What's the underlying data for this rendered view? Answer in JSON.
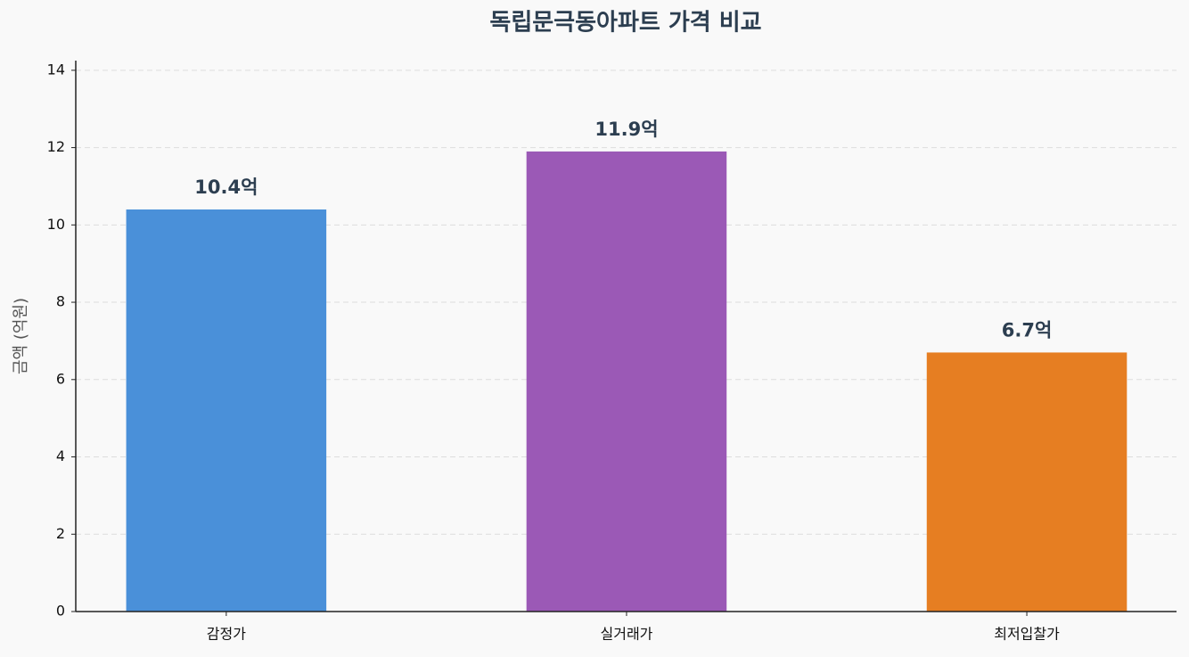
{
  "chart_data": {
    "type": "bar",
    "title": "독립문극동아파트 가격 비교",
    "ylabel": "금액 (억원)",
    "categories": [
      "감정가",
      "실거래가",
      "최저입찰가"
    ],
    "values": [
      10.4,
      11.9,
      6.7
    ],
    "value_labels": [
      "10.4억",
      "11.9억",
      "6.7억"
    ],
    "colors": [
      "#4a90d9",
      "#9b59b6",
      "#e67e22"
    ],
    "ylim": [
      0,
      14.25
    ],
    "yticks": [
      0,
      2,
      4,
      6,
      8,
      10,
      12,
      14
    ],
    "grid": true
  }
}
